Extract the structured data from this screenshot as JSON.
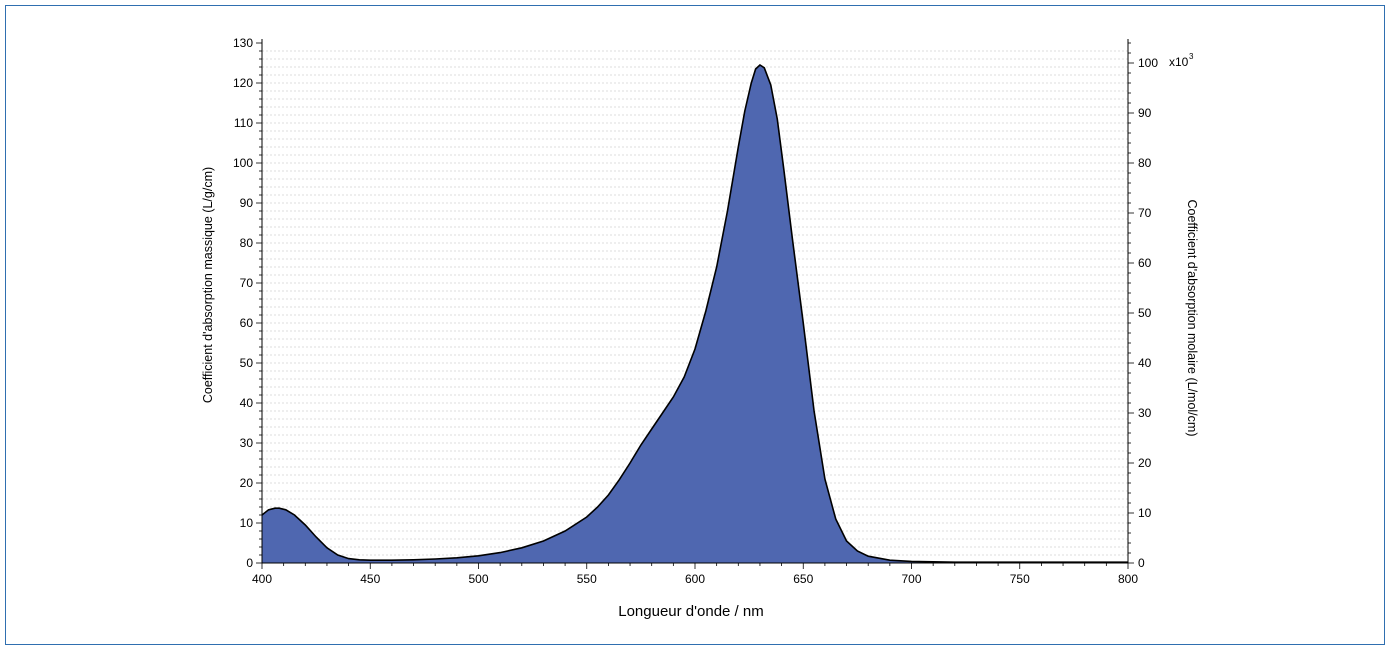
{
  "chart_data": {
    "type": "area",
    "xlabel": "Longueur d'onde / nm",
    "ylabel_left": "Coefficient d'absorption massique (L/g/cm)",
    "ylabel_right": "Coefficient d'absorption molaire (L/mol/cm)",
    "right_unit_label": "x10",
    "right_unit_exponent": "3",
    "xlim": [
      400,
      800
    ],
    "ylim_left": [
      0,
      130
    ],
    "ylim_right": [
      0,
      104
    ],
    "x_ticks": [
      400,
      450,
      500,
      550,
      600,
      650,
      700,
      750,
      800
    ],
    "y_ticks_left": [
      0,
      10,
      20,
      30,
      40,
      50,
      60,
      70,
      80,
      90,
      100,
      110,
      120,
      130
    ],
    "y_ticks_right": [
      0,
      10,
      20,
      30,
      40,
      50,
      60,
      70,
      80,
      90,
      100
    ],
    "grid": "horizontal dashed",
    "fill_color": "#4f67b0",
    "line_color": "#000000",
    "series": [
      {
        "x": [
          400,
          403,
          406,
          408,
          411,
          415,
          420,
          425,
          430,
          435,
          440,
          445,
          450,
          460,
          470,
          480,
          490,
          500,
          510,
          520,
          530,
          540,
          550,
          555,
          560,
          565,
          570,
          575,
          580,
          585,
          590,
          595,
          600,
          605,
          610,
          615,
          620,
          623,
          626,
          628,
          630,
          632,
          635,
          638,
          641,
          645,
          650,
          655,
          660,
          665,
          670,
          675,
          680,
          690,
          700,
          710,
          720,
          740,
          760,
          780,
          800
        ],
        "values": [
          12,
          13.3,
          13.7,
          13.7,
          13.3,
          12,
          9.5,
          6.5,
          3.8,
          2,
          1.1,
          0.8,
          0.7,
          0.7,
          0.8,
          1,
          1.3,
          1.8,
          2.6,
          3.8,
          5.5,
          8,
          11.5,
          14,
          17,
          20.8,
          25,
          29.5,
          33.5,
          37.5,
          41.5,
          46.5,
          53.5,
          63,
          74,
          88,
          104,
          113,
          120,
          123.5,
          124.5,
          123.8,
          119.5,
          111,
          98.5,
          81,
          60,
          38,
          21,
          11,
          5.5,
          3,
          1.7,
          0.7,
          0.4,
          0.3,
          0.2,
          0.2,
          0.2,
          0.2,
          0.2
        ]
      }
    ]
  }
}
